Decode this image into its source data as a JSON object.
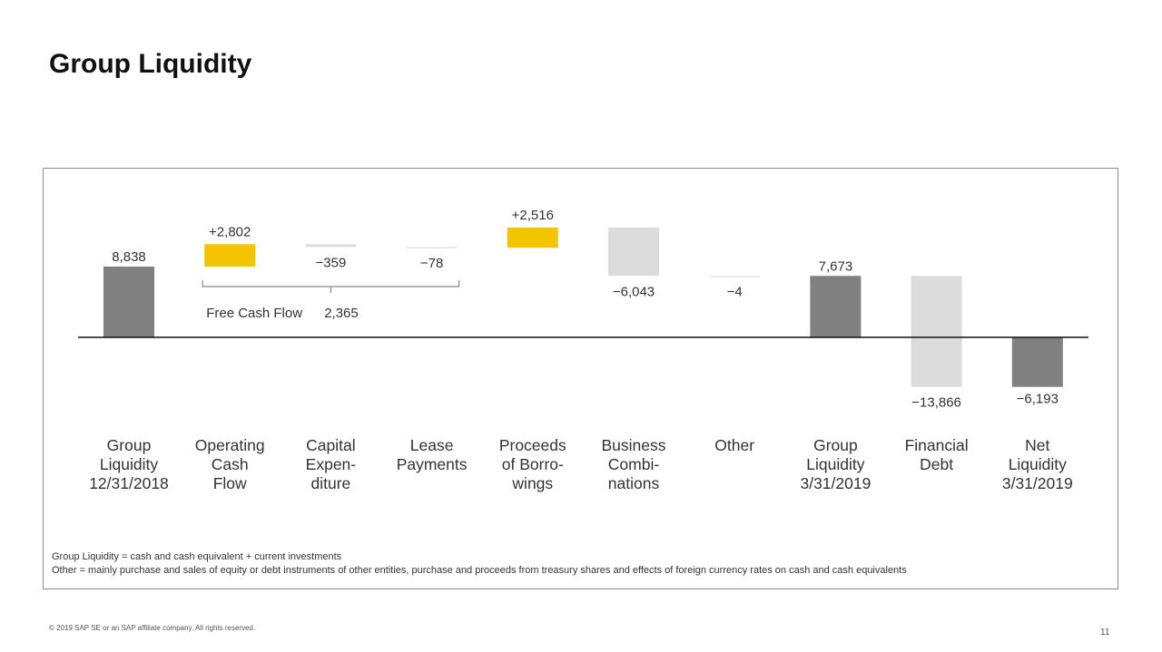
{
  "page": {
    "title": "Group Liquidity",
    "copyright": "© 2019 SAP SE or an SAP affiliate company. All rights reserved.",
    "page_number": "11"
  },
  "notes": [
    "Group Liquidity = cash and cash equivalent + current investments",
    "Other = mainly purchase and sales of equity or debt instruments of other entities, purchase and proceeds from treasury shares and effects of foreign currency rates on cash and cash equivalents"
  ],
  "colors": {
    "total": "#808080",
    "increase": "#f5c400",
    "decrease": "#dcdcdc",
    "baseline": "#111111",
    "bracket": "#888888"
  },
  "chart_data": {
    "type": "waterfall",
    "title": "Group Liquidity",
    "axes_visible": false,
    "categories": [
      [
        "Group",
        "Liquidity",
        "12/31/2018"
      ],
      [
        "Operating",
        "Cash",
        "Flow"
      ],
      [
        "Capital",
        "Expen-",
        "diture"
      ],
      [
        "Lease",
        "Payments"
      ],
      [
        "Proceeds",
        "of Borro-",
        "wings"
      ],
      [
        "Business",
        "Combi-",
        "nations"
      ],
      [
        "Other"
      ],
      [
        "Group",
        "Liquidity",
        "3/31/2019"
      ],
      [
        "Financial",
        "Debt"
      ],
      [
        "Net",
        "Liquidity",
        "3/31/2019"
      ]
    ],
    "bars": [
      {
        "kind": "total",
        "start": 0,
        "end": 8838,
        "label": "8,838"
      },
      {
        "kind": "increase",
        "start": 8838,
        "end": 11640,
        "label": "+2,802"
      },
      {
        "kind": "decrease",
        "start": 11640,
        "end": 11281,
        "label": "−359"
      },
      {
        "kind": "decrease",
        "start": 11281,
        "end": 11203,
        "label": "−78"
      },
      {
        "kind": "increase",
        "start": 11203,
        "end": 13719,
        "label": "+2,516"
      },
      {
        "kind": "decrease",
        "start": 13719,
        "end": 7676,
        "label": "−6,043"
      },
      {
        "kind": "decrease",
        "start": 7676,
        "end": 7672,
        "label": "−4"
      },
      {
        "kind": "total",
        "start": 0,
        "end": 7673,
        "label": "7,673"
      },
      {
        "kind": "decrease",
        "start": 7673,
        "end": -6193,
        "label": "−13,866"
      },
      {
        "kind": "total",
        "start": 0,
        "end": -6193,
        "label": "−6,193"
      }
    ],
    "annotation": {
      "text": "Free Cash Flow",
      "value": "2,365",
      "from_index": 1,
      "to_index": 3
    },
    "y_range": [
      -8000,
      15000
    ]
  }
}
